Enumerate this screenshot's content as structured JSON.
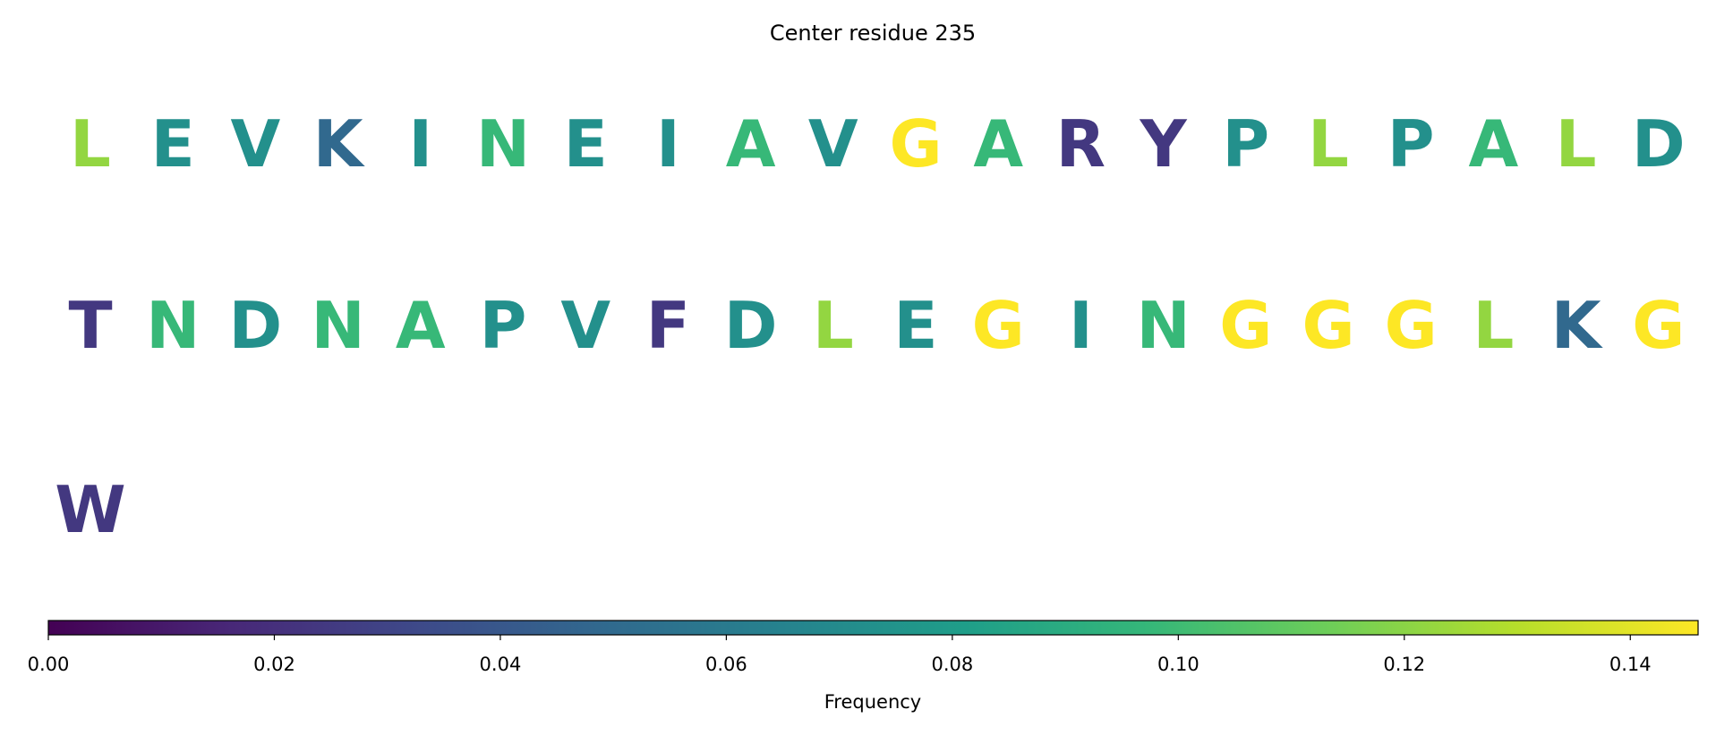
{
  "chart_data": {
    "type": "residue-grid",
    "title": "Center residue 235",
    "residues": [
      "L",
      "E",
      "V",
      "K",
      "I",
      "N",
      "E",
      "I",
      "A",
      "V",
      "G",
      "A",
      "R",
      "Y",
      "P",
      "L",
      "P",
      "A",
      "L",
      "D",
      "T",
      "N",
      "D",
      "N",
      "A",
      "P",
      "V",
      "F",
      "D",
      "L",
      "E",
      "G",
      "I",
      "N",
      "G",
      "G",
      "G",
      "L",
      "K",
      "G",
      "W"
    ],
    "values": [
      0.122,
      0.073,
      0.073,
      0.049,
      0.073,
      0.098,
      0.073,
      0.073,
      0.098,
      0.073,
      0.146,
      0.098,
      0.024,
      0.024,
      0.073,
      0.122,
      0.073,
      0.098,
      0.122,
      0.073,
      0.024,
      0.098,
      0.073,
      0.098,
      0.098,
      0.073,
      0.073,
      0.024,
      0.073,
      0.122,
      0.073,
      0.146,
      0.073,
      0.098,
      0.146,
      0.146,
      0.146,
      0.122,
      0.049,
      0.146,
      0.024
    ],
    "colormap": "viridis",
    "clim": [
      0,
      0.146
    ],
    "cticks": [
      {
        "value": 0,
        "label": "0.00"
      },
      0.02,
      0.04,
      0.06,
      0.08,
      {
        "value": 0.1,
        "label": "0.10"
      },
      0.12,
      0.14
    ],
    "colorbar_label": "Frequency"
  }
}
